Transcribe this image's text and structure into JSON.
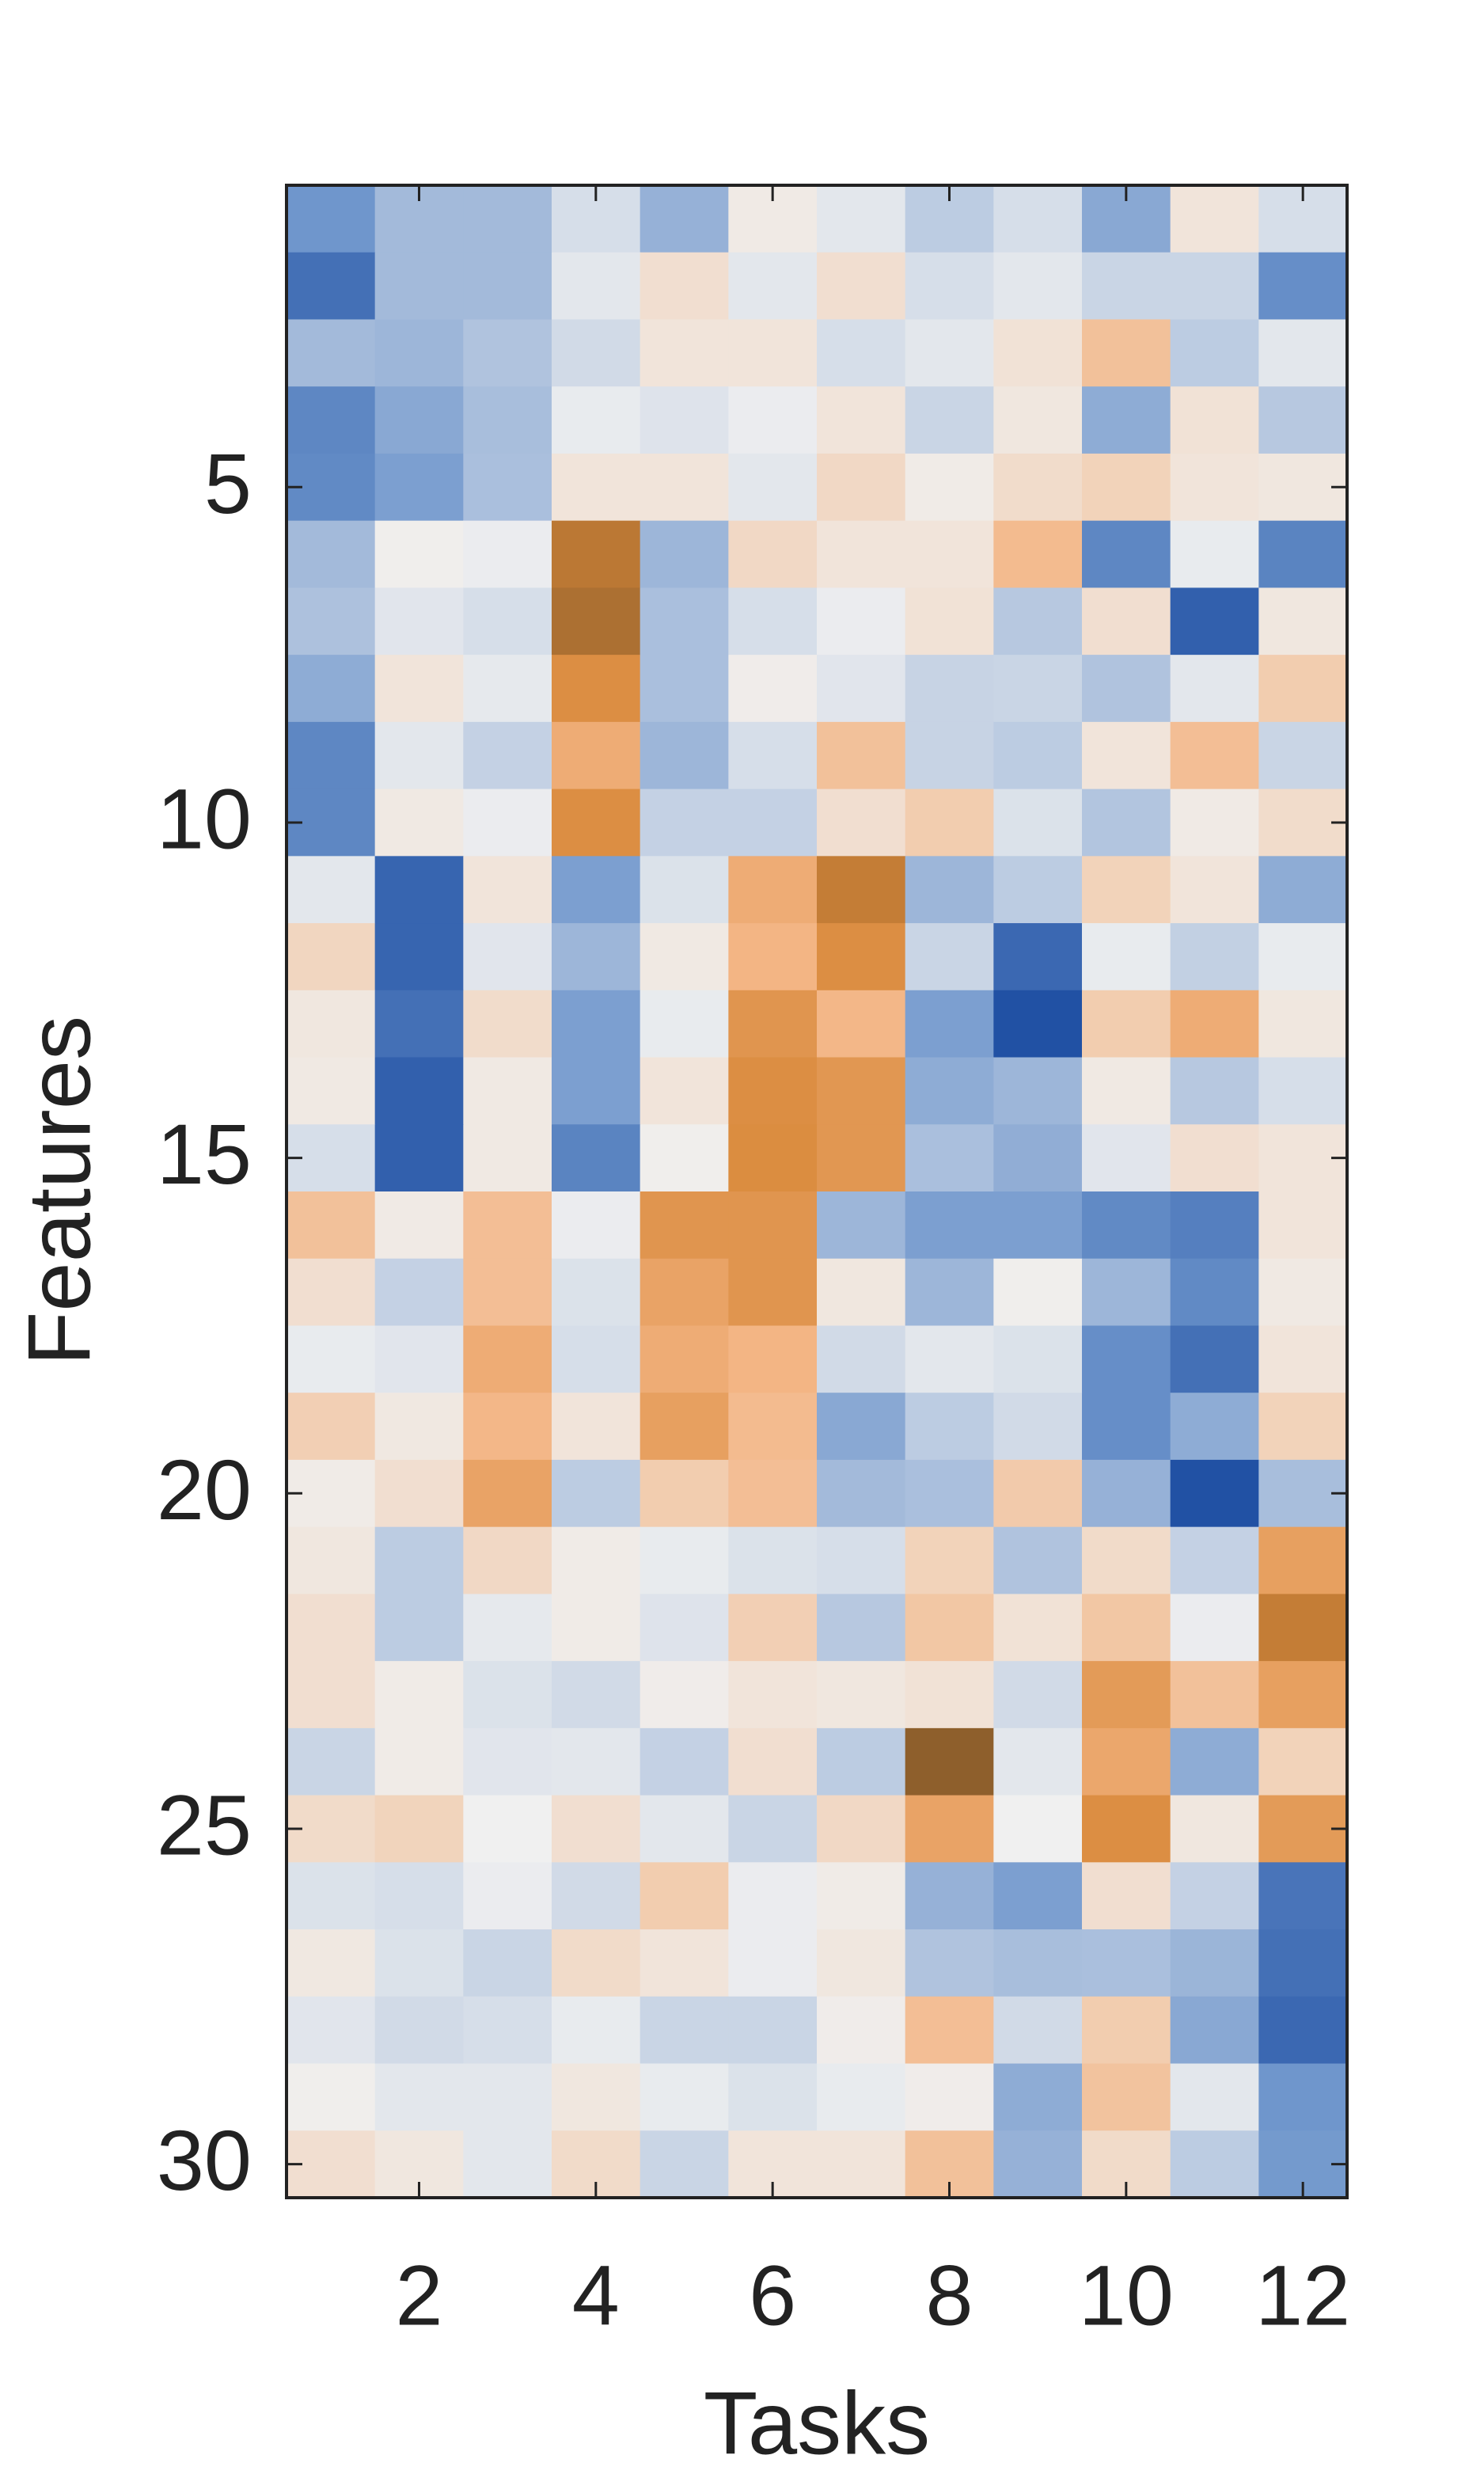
{
  "chart_data": {
    "type": "heatmap",
    "x_label": "Tasks",
    "y_label": "Features",
    "xlim": [
      0.5,
      12.5
    ],
    "ylim": [
      0.5,
      30.5
    ],
    "y_reversed": true,
    "xticks": [
      2,
      4,
      6,
      8,
      10,
      12
    ],
    "yticks": [
      5,
      10,
      15,
      20,
      25,
      30
    ],
    "clim": [
      -1,
      1
    ],
    "colormap": {
      "stops": [
        -1,
        -0.5,
        0,
        0.5,
        0.75,
        1
      ],
      "colors": [
        "#1849a0",
        "#6f96cc",
        "#f0f0f0",
        "#f3b584",
        "#d9893a",
        "#8e5f2c"
      ]
    },
    "values": [
      [
        -0.5,
        -0.3,
        -0.3,
        -0.1,
        -0.35,
        0.05,
        -0.05,
        -0.2,
        -0.1,
        -0.4,
        0.1,
        -0.1
      ],
      [
        -0.75,
        -0.3,
        -0.3,
        -0.05,
        0.15,
        -0.05,
        0.15,
        -0.1,
        -0.05,
        -0.15,
        -0.15,
        -0.55
      ],
      [
        -0.3,
        -0.32,
        -0.25,
        -0.12,
        0.1,
        0.1,
        -0.1,
        -0.05,
        0.12,
        0.4,
        -0.2,
        -0.05
      ],
      [
        -0.6,
        -0.4,
        -0.28,
        -0.03,
        -0.07,
        -0.02,
        0.1,
        -0.15,
        0.08,
        -0.38,
        0.12,
        -0.22
      ],
      [
        -0.58,
        -0.45,
        -0.27,
        0.1,
        0.1,
        -0.05,
        0.2,
        0.04,
        0.17,
        0.25,
        0.1,
        0.08
      ],
      [
        -0.3,
        0.02,
        -0.02,
        0.85,
        -0.32,
        0.2,
        0.1,
        0.1,
        0.45,
        -0.6,
        -0.03,
        -0.62
      ],
      [
        -0.26,
        -0.06,
        -0.1,
        0.9,
        -0.27,
        -0.1,
        -0.02,
        0.12,
        -0.22,
        0.15,
        -0.85,
        0.08
      ],
      [
        -0.38,
        0.1,
        -0.04,
        0.72,
        -0.27,
        0.03,
        -0.06,
        -0.16,
        -0.15,
        -0.25,
        -0.05,
        0.3
      ],
      [
        -0.6,
        -0.05,
        -0.17,
        0.55,
        -0.32,
        -0.1,
        0.4,
        -0.16,
        -0.2,
        0.1,
        0.42,
        -0.15
      ],
      [
        -0.6,
        0.06,
        -0.02,
        0.72,
        -0.17,
        -0.17,
        0.15,
        0.3,
        -0.08,
        -0.24,
        0.05,
        0.17
      ],
      [
        -0.05,
        -0.82,
        0.1,
        -0.45,
        -0.08,
        0.55,
        0.82,
        -0.32,
        -0.2,
        0.25,
        0.1,
        -0.38
      ],
      [
        0.22,
        -0.82,
        -0.06,
        -0.32,
        0.06,
        0.5,
        0.72,
        -0.15,
        -0.8,
        -0.03,
        -0.18,
        -0.03
      ],
      [
        0.08,
        -0.75,
        0.17,
        -0.45,
        -0.03,
        0.68,
        0.48,
        -0.45,
        -0.95,
        0.3,
        0.55,
        0.08
      ],
      [
        0.06,
        -0.85,
        0.06,
        -0.45,
        0.1,
        0.72,
        0.67,
        -0.38,
        -0.32,
        0.06,
        -0.22,
        -0.1
      ],
      [
        -0.1,
        -0.85,
        0.06,
        -0.62,
        0.02,
        0.73,
        0.67,
        -0.27,
        -0.37,
        -0.06,
        0.15,
        0.1
      ],
      [
        0.4,
        0.05,
        0.42,
        -0.02,
        0.68,
        0.68,
        -0.32,
        -0.45,
        -0.45,
        -0.58,
        -0.65,
        0.1
      ],
      [
        0.15,
        -0.17,
        0.42,
        -0.08,
        0.6,
        0.68,
        0.08,
        -0.32,
        0.02,
        -0.32,
        -0.58,
        0.06
      ],
      [
        -0.03,
        -0.06,
        0.55,
        -0.1,
        0.55,
        0.5,
        -0.12,
        -0.05,
        -0.08,
        -0.55,
        -0.75,
        0.1
      ],
      [
        0.28,
        0.07,
        0.48,
        0.1,
        0.62,
        0.45,
        -0.4,
        -0.2,
        -0.12,
        -0.55,
        -0.38,
        0.25
      ],
      [
        0.04,
        0.15,
        0.6,
        -0.2,
        0.3,
        0.42,
        -0.3,
        -0.27,
        0.32,
        -0.35,
        -0.95,
        -0.28
      ],
      [
        0.08,
        -0.2,
        0.2,
        0.04,
        -0.03,
        -0.08,
        -0.1,
        0.25,
        -0.25,
        0.18,
        -0.17,
        0.62
      ],
      [
        0.15,
        -0.2,
        -0.04,
        0.04,
        -0.07,
        0.28,
        -0.22,
        0.35,
        0.12,
        0.35,
        -0.02,
        0.82
      ],
      [
        0.15,
        0.04,
        -0.08,
        -0.12,
        0.03,
        0.1,
        0.08,
        0.12,
        -0.12,
        0.65,
        0.4,
        0.62
      ],
      [
        -0.15,
        0.04,
        -0.06,
        -0.05,
        -0.17,
        0.15,
        -0.2,
        1.0,
        -0.05,
        0.58,
        -0.38,
        0.25
      ],
      [
        0.18,
        0.24,
        0.0,
        0.15,
        -0.05,
        -0.15,
        0.2,
        0.6,
        0.0,
        0.72,
        0.08,
        0.65
      ],
      [
        -0.08,
        -0.1,
        -0.02,
        -0.12,
        0.3,
        -0.02,
        0.04,
        -0.35,
        -0.45,
        0.15,
        -0.17,
        -0.72
      ],
      [
        0.07,
        -0.08,
        -0.15,
        0.18,
        0.1,
        -0.02,
        0.08,
        -0.25,
        -0.28,
        -0.27,
        -0.33,
        -0.75
      ],
      [
        -0.06,
        -0.12,
        -0.1,
        -0.03,
        -0.15,
        -0.15,
        0.03,
        0.42,
        -0.12,
        0.3,
        -0.4,
        -0.8
      ],
      [
        0.02,
        -0.05,
        -0.05,
        0.08,
        -0.03,
        -0.08,
        -0.03,
        0.03,
        -0.38,
        0.38,
        -0.05,
        -0.5
      ],
      [
        0.15,
        0.08,
        -0.05,
        0.18,
        -0.15,
        0.1,
        0.1,
        0.4,
        -0.35,
        0.18,
        -0.2,
        -0.48
      ]
    ]
  }
}
